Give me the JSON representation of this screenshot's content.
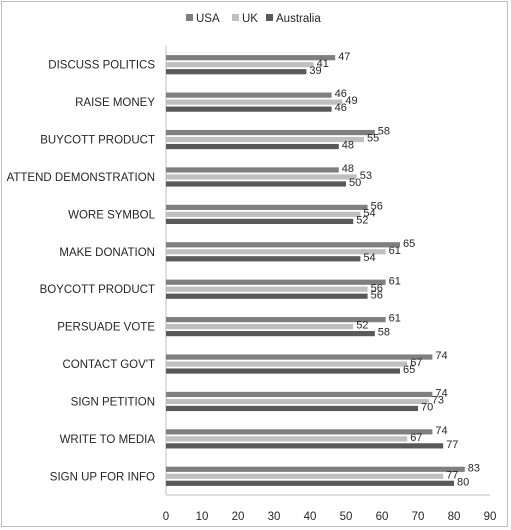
{
  "chart_data": {
    "type": "bar",
    "orientation": "horizontal",
    "title": "",
    "xlabel": "",
    "ylabel": "",
    "xlim": [
      0,
      90
    ],
    "xticks": [
      0,
      10,
      20,
      30,
      40,
      50,
      60,
      70,
      80,
      90
    ],
    "grid": false,
    "legend_position": "top",
    "categories": [
      "DISCUSS POLITICS",
      "RAISE MONEY",
      "BUYCOTT PRODUCT",
      "ATTEND DEMONSTRATION",
      "WORE SYMBOL",
      "MAKE DONATION",
      "BOYCOTT PRODUCT",
      "PERSUADE VOTE",
      "CONTACT GOV'T",
      "SIGN PETITION",
      "WRITE TO MEDIA",
      "SIGN UP FOR INFO"
    ],
    "series": [
      {
        "name": "USA",
        "color": "#7f7f7f",
        "values": [
          47,
          46,
          58,
          48,
          56,
          65,
          61,
          61,
          74,
          74,
          74,
          83
        ]
      },
      {
        "name": "UK",
        "color": "#bfbfbf",
        "values": [
          41,
          49,
          55,
          53,
          54,
          61,
          56,
          52,
          67,
          73,
          67,
          77
        ]
      },
      {
        "name": "Australia",
        "color": "#595959",
        "values": [
          39,
          46,
          48,
          50,
          52,
          54,
          56,
          58,
          65,
          70,
          77,
          80
        ]
      }
    ]
  }
}
